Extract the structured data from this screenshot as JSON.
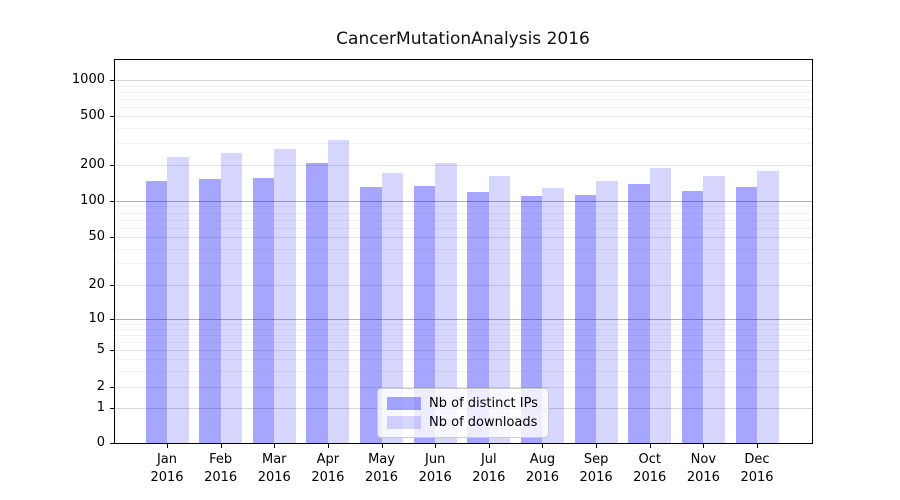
{
  "title": "CancerMutationAnalysis 2016",
  "chart_data": {
    "type": "bar",
    "title": "CancerMutationAnalysis 2016",
    "categories": [
      "Jan",
      "Feb",
      "Mar",
      "Apr",
      "May",
      "Jun",
      "Jul",
      "Aug",
      "Sep",
      "Oct",
      "Nov",
      "Dec"
    ],
    "category_year": "2016",
    "series": [
      {
        "name": "Nb of distinct IPs",
        "color": "rgba(0,0,255,0.35)",
        "values": [
          145,
          152,
          154,
          207,
          130,
          133,
          118,
          110,
          113,
          139,
          122,
          130
        ]
      },
      {
        "name": "Nb of downloads",
        "color": "rgba(0,0,255,0.16)",
        "values": [
          230,
          248,
          268,
          322,
          172,
          205,
          161,
          129,
          145,
          186,
          162,
          176
        ]
      }
    ],
    "yscale": "symlog",
    "y_tick_labels": [
      "0",
      "1",
      "2",
      "5",
      "10",
      "20",
      "50",
      "100",
      "200",
      "500",
      "1000"
    ],
    "y_tick_values": [
      0,
      1,
      2,
      5,
      10,
      20,
      50,
      100,
      200,
      500,
      1000
    ],
    "y_minor_values": [
      3,
      4,
      6,
      7,
      8,
      9,
      30,
      40,
      60,
      70,
      80,
      90,
      300,
      400,
      600,
      700,
      800,
      900
    ],
    "ylim": [
      0,
      1500
    ],
    "grid": true,
    "legend_position": "lower-center"
  },
  "colors": {
    "bar_distinct_ips": "rgba(0,0,255,0.35)",
    "bar_downloads": "rgba(0,0,255,0.16)",
    "grid_decade": "#b0b0b0",
    "grid_labeled": "#e4e4e4",
    "grid_minor": "#f2f2f2",
    "frame": "#000000",
    "title_color": "#111111"
  }
}
